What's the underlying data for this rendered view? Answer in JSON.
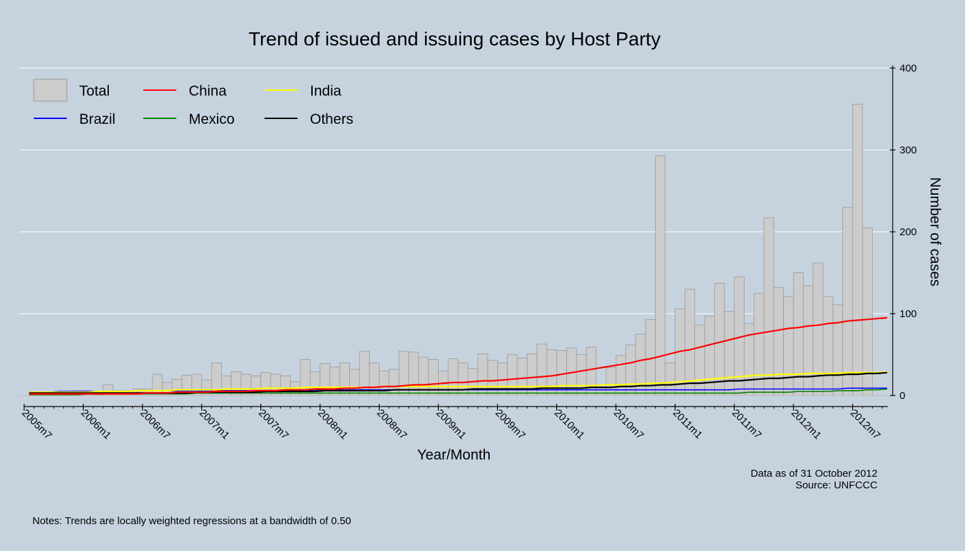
{
  "title": "Trend of issued and issuing cases by Host Party",
  "xlabel": "Year/Month",
  "ylabel": "Number of cases",
  "data_note": "Data as of 31 October 2012",
  "source": "Source: UNFCCC",
  "notes": "Notes: Trends are locally weighted regressions at a bandwidth of 0.50",
  "colors": {
    "background": "#c6d3df",
    "bar_fill": "#cccccc",
    "bar_stroke": "#999999",
    "China": "#ff0000",
    "India": "#ffff00",
    "Brazil": "#0000ff",
    "Mexico": "#008000",
    "Others": "#000000"
  },
  "chart_data": {
    "type": "bar",
    "title": "Trend of issued and issuing cases by Host Party",
    "xlabel": "Year/Month",
    "ylabel": "Number of cases",
    "ylim": [
      0,
      400
    ],
    "yticks": [
      0,
      100,
      200,
      300,
      400
    ],
    "xticks": [
      "2005m7",
      "2006m1",
      "2006m7",
      "2007m1",
      "2007m7",
      "2008m1",
      "2008m7",
      "2009m1",
      "2009m7",
      "2010m1",
      "2010m7",
      "2011m1",
      "2011m7",
      "2012m1",
      "2012m7"
    ],
    "grid": true,
    "legend_position": "top-left",
    "legend": [
      "Total",
      "China",
      "India",
      "Brazil",
      "Mexico",
      "Others"
    ],
    "categories": [
      "2005m7",
      "2005m8",
      "2005m9",
      "2005m10",
      "2005m11",
      "2005m12",
      "2006m1",
      "2006m2",
      "2006m3",
      "2006m4",
      "2006m5",
      "2006m6",
      "2006m7",
      "2006m8",
      "2006m9",
      "2006m10",
      "2006m11",
      "2006m12",
      "2007m1",
      "2007m2",
      "2007m3",
      "2007m4",
      "2007m5",
      "2007m6",
      "2007m7",
      "2007m8",
      "2007m9",
      "2007m10",
      "2007m11",
      "2007m12",
      "2008m1",
      "2008m2",
      "2008m3",
      "2008m4",
      "2008m5",
      "2008m6",
      "2008m7",
      "2008m8",
      "2008m9",
      "2008m10",
      "2008m11",
      "2008m12",
      "2009m1",
      "2009m2",
      "2009m3",
      "2009m4",
      "2009m5",
      "2009m6",
      "2009m7",
      "2009m8",
      "2009m9",
      "2009m10",
      "2009m11",
      "2009m12",
      "2010m1",
      "2010m2",
      "2010m3",
      "2010m4",
      "2010m5",
      "2010m6",
      "2010m7",
      "2010m8",
      "2010m9",
      "2010m10",
      "2010m11",
      "2010m12",
      "2011m1",
      "2011m2",
      "2011m3",
      "2011m4",
      "2011m5",
      "2011m6",
      "2011m7",
      "2011m8",
      "2011m9",
      "2011m10",
      "2011m11",
      "2011m12",
      "2012m1",
      "2012m2",
      "2012m3",
      "2012m4",
      "2012m5",
      "2012m6",
      "2012m7",
      "2012m8",
      "2012m9",
      "2012m10"
    ],
    "series": [
      {
        "name": "Total",
        "type": "bar",
        "values": [
          0,
          0,
          3,
          0,
          0,
          6,
          6,
          1,
          13,
          6,
          6,
          8,
          8,
          26,
          16,
          20,
          25,
          26,
          19,
          40,
          24,
          29,
          26,
          24,
          28,
          26,
          24,
          17,
          44,
          29,
          39,
          35,
          40,
          32,
          54,
          40,
          30,
          32,
          54,
          53,
          47,
          44,
          30,
          45,
          40,
          33,
          51,
          43,
          40,
          50,
          46,
          51,
          63,
          56,
          55,
          58,
          50,
          59,
          7,
          34,
          49,
          62,
          75,
          93,
          293,
          40,
          106,
          130,
          86,
          97,
          137,
          103,
          145,
          88,
          125,
          217,
          132,
          121,
          150,
          134,
          162,
          121,
          111,
          230,
          356,
          205,
          0,
          0
        ]
      },
      {
        "name": "China",
        "type": "line",
        "values": [
          2,
          2,
          2,
          2,
          2,
          2,
          2,
          2,
          2,
          2,
          2,
          2,
          3,
          3,
          3,
          4,
          4,
          4,
          4,
          5,
          5,
          5,
          5,
          6,
          6,
          6,
          7,
          7,
          7,
          8,
          8,
          8,
          9,
          9,
          10,
          10,
          11,
          11,
          12,
          13,
          13,
          14,
          15,
          16,
          16,
          17,
          18,
          18,
          19,
          20,
          21,
          22,
          23,
          24,
          26,
          28,
          30,
          32,
          34,
          36,
          38,
          40,
          43,
          45,
          48,
          51,
          54,
          56,
          59,
          62,
          65,
          68,
          71,
          74,
          76,
          78,
          80,
          82,
          83,
          85,
          86,
          88,
          89,
          91,
          92,
          93,
          94,
          95
        ]
      },
      {
        "name": "India",
        "type": "line",
        "values": [
          4,
          4,
          4,
          4,
          4,
          4,
          4,
          5,
          5,
          5,
          5,
          6,
          6,
          6,
          6,
          7,
          7,
          7,
          7,
          7,
          8,
          8,
          8,
          8,
          9,
          9,
          9,
          9,
          10,
          10,
          10,
          10,
          10,
          10,
          10,
          10,
          11,
          11,
          11,
          11,
          11,
          11,
          11,
          11,
          11,
          11,
          11,
          11,
          11,
          11,
          11,
          11,
          11,
          11,
          12,
          12,
          12,
          12,
          13,
          13,
          13,
          14,
          14,
          15,
          15,
          16,
          17,
          18,
          19,
          20,
          21,
          22,
          23,
          24,
          25,
          25,
          26,
          26,
          26,
          27,
          27,
          27,
          27,
          28,
          28,
          28,
          28,
          29
        ]
      },
      {
        "name": "Brazil",
        "type": "line",
        "values": [
          4,
          4,
          4,
          5,
          5,
          5,
          5,
          5,
          5,
          5,
          5,
          6,
          6,
          6,
          6,
          6,
          6,
          6,
          6,
          6,
          6,
          6,
          6,
          6,
          6,
          6,
          6,
          6,
          6,
          7,
          7,
          7,
          7,
          7,
          7,
          7,
          7,
          7,
          7,
          7,
          7,
          7,
          7,
          7,
          7,
          7,
          7,
          7,
          7,
          7,
          7,
          7,
          7,
          7,
          7,
          7,
          7,
          7,
          7,
          7,
          7,
          7,
          7,
          7,
          7,
          7,
          7,
          7,
          7,
          7,
          7,
          7,
          8,
          8,
          8,
          8,
          8,
          8,
          8,
          8,
          8,
          8,
          8,
          9,
          9,
          9,
          9,
          9
        ]
      },
      {
        "name": "Mexico",
        "type": "line",
        "values": [
          1,
          1,
          1,
          1,
          1,
          1,
          2,
          2,
          2,
          2,
          2,
          2,
          2,
          2,
          2,
          2,
          2,
          3,
          3,
          3,
          3,
          3,
          3,
          3,
          3,
          3,
          3,
          3,
          3,
          3,
          3,
          3,
          3,
          3,
          3,
          3,
          3,
          3,
          3,
          3,
          3,
          3,
          3,
          3,
          3,
          3,
          3,
          3,
          3,
          3,
          3,
          3,
          3,
          3,
          3,
          3,
          3,
          3,
          3,
          3,
          3,
          3,
          3,
          3,
          3,
          3,
          3,
          3,
          3,
          3,
          3,
          3,
          3,
          4,
          4,
          4,
          4,
          4,
          5,
          5,
          5,
          5,
          6,
          6,
          6,
          7,
          7,
          8
        ]
      },
      {
        "name": "Others",
        "type": "line",
        "values": [
          3,
          3,
          3,
          3,
          3,
          3,
          3,
          3,
          3,
          3,
          3,
          3,
          3,
          3,
          3,
          3,
          3,
          4,
          4,
          4,
          4,
          4,
          4,
          4,
          5,
          5,
          5,
          5,
          5,
          5,
          6,
          6,
          6,
          6,
          6,
          6,
          6,
          7,
          7,
          7,
          7,
          7,
          7,
          7,
          7,
          8,
          8,
          8,
          8,
          8,
          8,
          8,
          9,
          9,
          9,
          9,
          9,
          10,
          10,
          10,
          11,
          11,
          12,
          12,
          13,
          13,
          14,
          15,
          15,
          16,
          17,
          18,
          18,
          19,
          20,
          21,
          21,
          22,
          23,
          23,
          24,
          25,
          25,
          26,
          26,
          27,
          27,
          28
        ]
      }
    ]
  }
}
